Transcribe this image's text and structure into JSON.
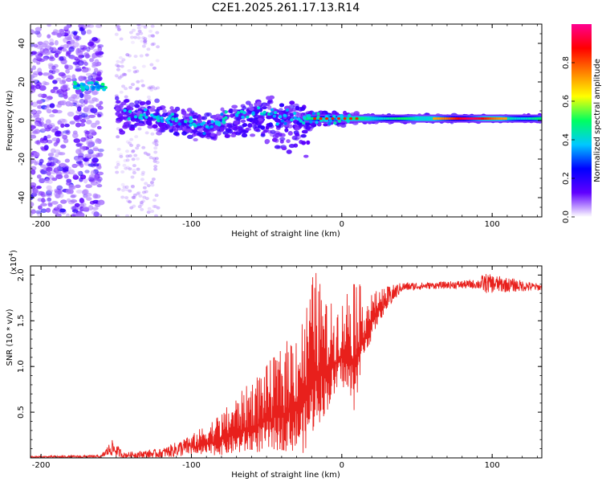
{
  "title": "C2E1.2025.261.17.13.R14",
  "chart_data": [
    {
      "type": "heatmap",
      "xlabel": "Height of straight line (km)",
      "ylabel": "Frequency (Hz)",
      "xlim": [
        -207,
        133
      ],
      "ylim": [
        -50,
        50
      ],
      "xticks": [
        -200,
        -100,
        0,
        100
      ],
      "xtick_labels": [
        "-200",
        "-100",
        "0",
        "100"
      ],
      "yticks": [
        -40,
        -20,
        0,
        20,
        40
      ],
      "ytick_labels": [
        "-40",
        "-20",
        "0",
        "20",
        "40"
      ],
      "colorbar": {
        "label": "Normalized spectral amplitude",
        "range": [
          0,
          1
        ],
        "ticks": [
          0.0,
          0.2,
          0.4,
          0.6,
          0.8
        ],
        "tick_labels": [
          "0.0",
          "0.2",
          "0.4",
          "0.6",
          "0.8"
        ],
        "colormap": [
          "#ffffff",
          "#6000ff",
          "#0000ff",
          "#00c8ff",
          "#00ff60",
          "#ffff00",
          "#ff8000",
          "#ff0000",
          "#ff0090"
        ]
      },
      "grid": false,
      "ridge": [
        {
          "x": -180,
          "f": 18
        },
        {
          "x": -165,
          "f": 18
        },
        {
          "x": -155,
          "f": 17
        },
        {
          "x": -148,
          "f": 3
        },
        {
          "x": -130,
          "f": 2
        },
        {
          "x": -110,
          "f": 0
        },
        {
          "x": -90,
          "f": -3
        },
        {
          "x": -70,
          "f": 3
        },
        {
          "x": -55,
          "f": 5
        },
        {
          "x": -40,
          "f": 2
        },
        {
          "x": -25,
          "f": 1
        },
        {
          "x": -10,
          "f": 1
        },
        {
          "x": 0,
          "f": 1
        },
        {
          "x": 20,
          "f": 1
        },
        {
          "x": 60,
          "f": 1
        },
        {
          "x": 90,
          "f": 1
        },
        {
          "x": 133,
          "f": 1
        }
      ]
    },
    {
      "type": "line",
      "xlabel": "Height of straight line (km)",
      "ylabel": "SNR (10 * v/v)",
      "exponent_label": "(x10",
      "exponent_power": "4",
      "exponent_close": ")",
      "xlim": [
        -207,
        133
      ],
      "ylim": [
        0,
        2.1
      ],
      "xticks": [
        -200,
        -100,
        0,
        100
      ],
      "xtick_labels": [
        "-200",
        "-100",
        "0",
        "100"
      ],
      "yticks": [
        0.5,
        1.0,
        1.5,
        2.0
      ],
      "ytick_labels": [
        "0.5",
        "1.0",
        "1.5",
        "2.0"
      ],
      "color": "#e8201c",
      "grid": false,
      "envelope": [
        {
          "x": -207,
          "low": 0.0,
          "high": 0.02
        },
        {
          "x": -160,
          "low": 0.0,
          "high": 0.03
        },
        {
          "x": -153,
          "low": 0.02,
          "high": 0.2
        },
        {
          "x": -145,
          "low": 0.0,
          "high": 0.06
        },
        {
          "x": -120,
          "low": 0.0,
          "high": 0.1
        },
        {
          "x": -100,
          "low": 0.02,
          "high": 0.25
        },
        {
          "x": -80,
          "low": 0.03,
          "high": 0.5
        },
        {
          "x": -60,
          "low": 0.05,
          "high": 0.85
        },
        {
          "x": -40,
          "low": 0.08,
          "high": 1.2
        },
        {
          "x": -25,
          "low": 0.05,
          "high": 1.6
        },
        {
          "x": -18,
          "low": 0.3,
          "high": 2.1
        },
        {
          "x": -10,
          "low": 0.5,
          "high": 1.7
        },
        {
          "x": 0,
          "low": 0.8,
          "high": 1.7
        },
        {
          "x": 8,
          "low": 0.5,
          "high": 2.1
        },
        {
          "x": 15,
          "low": 1.1,
          "high": 1.75
        },
        {
          "x": 25,
          "low": 1.5,
          "high": 1.85
        },
        {
          "x": 40,
          "low": 1.82,
          "high": 1.92
        },
        {
          "x": 60,
          "low": 1.85,
          "high": 1.92
        },
        {
          "x": 90,
          "low": 1.85,
          "high": 1.95
        },
        {
          "x": 95,
          "low": 1.8,
          "high": 2.02
        },
        {
          "x": 133,
          "low": 1.83,
          "high": 1.9
        }
      ]
    }
  ]
}
